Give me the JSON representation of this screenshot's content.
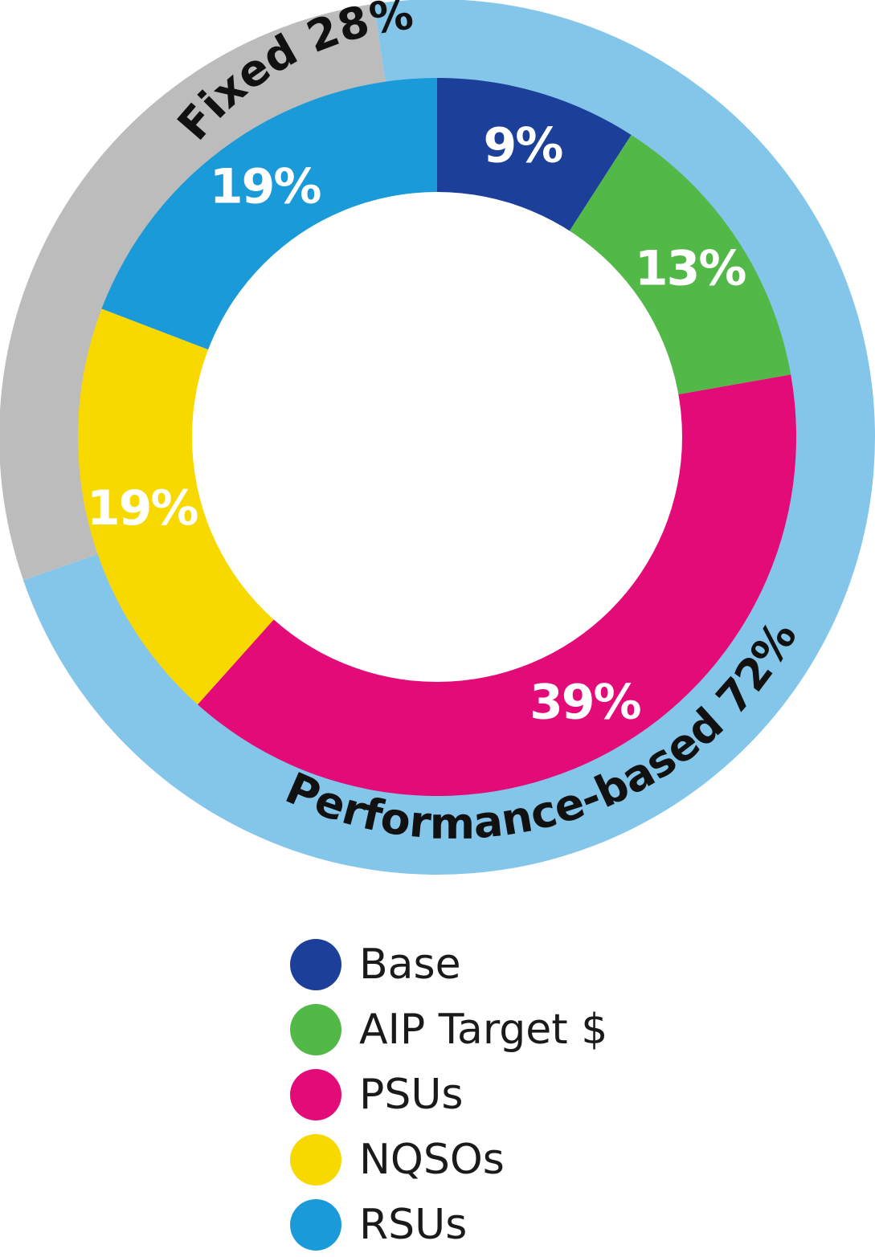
{
  "chart_data": {
    "type": "pie",
    "donut": true,
    "categories": [
      "Base",
      "AIP Target $",
      "PSUs",
      "NQSOs",
      "RSUs"
    ],
    "values": [
      9,
      13,
      39,
      19,
      19
    ],
    "labels": [
      "9%",
      "13%",
      "39%",
      "19%",
      "19%"
    ],
    "colors": [
      "#1c3f9a",
      "#52b848",
      "#e30b77",
      "#f7d900",
      "#1a9ad8"
    ],
    "legend_position": "bottom",
    "groups": [
      {
        "name": "Fixed",
        "value": 28,
        "label": "Fixed 28%",
        "members": [
          "RSUs",
          "Base"
        ],
        "color": "#bcbcbc"
      },
      {
        "name": "Performance-based",
        "value": 72,
        "label": "Performance-based 72%",
        "members": [
          "AIP Target $",
          "PSUs",
          "NQSOs"
        ],
        "color": "#84c5ea"
      }
    ]
  }
}
